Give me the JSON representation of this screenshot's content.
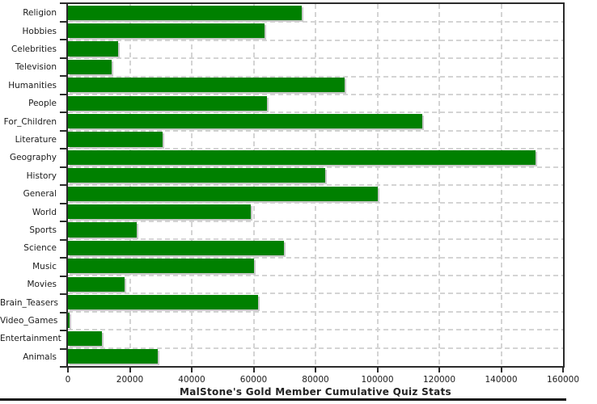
{
  "chart_data": {
    "type": "bar",
    "orientation": "horizontal",
    "title": "MalStone's Gold Member Cumulative Quiz Stats",
    "categories": [
      "Religion",
      "Hobbies",
      "Celebrities",
      "Television",
      "Humanities",
      "People",
      "For_Children",
      "Literature",
      "Geography",
      "History",
      "General",
      "World",
      "Sports",
      "Science",
      "Music",
      "Movies",
      "Brain_Teasers",
      "Video_Games",
      "Entertainment",
      "Animals"
    ],
    "values": [
      75600,
      63600,
      16300,
      14100,
      89300,
      64400,
      114600,
      30500,
      151200,
      83100,
      100100,
      59100,
      22200,
      69800,
      60100,
      18300,
      61400,
      500,
      11100,
      29000
    ],
    "xlabel": "",
    "ylabel": "",
    "xlim": [
      0,
      160000
    ],
    "x_ticks": [
      0,
      20000,
      40000,
      60000,
      80000,
      100000,
      120000,
      140000,
      160000
    ],
    "x_tick_labels": [
      "0",
      "20000",
      "40000",
      "60000",
      "80000",
      "100000",
      "120000",
      "140000",
      "160000"
    ],
    "grid": true,
    "legend": "none",
    "colors": {
      "bar": "#008000",
      "bar_shadow": "#c9c9c9",
      "gridline": "#d4d4d4",
      "plot_border": "#2b2b2b",
      "text": "#1c1c1c"
    }
  }
}
